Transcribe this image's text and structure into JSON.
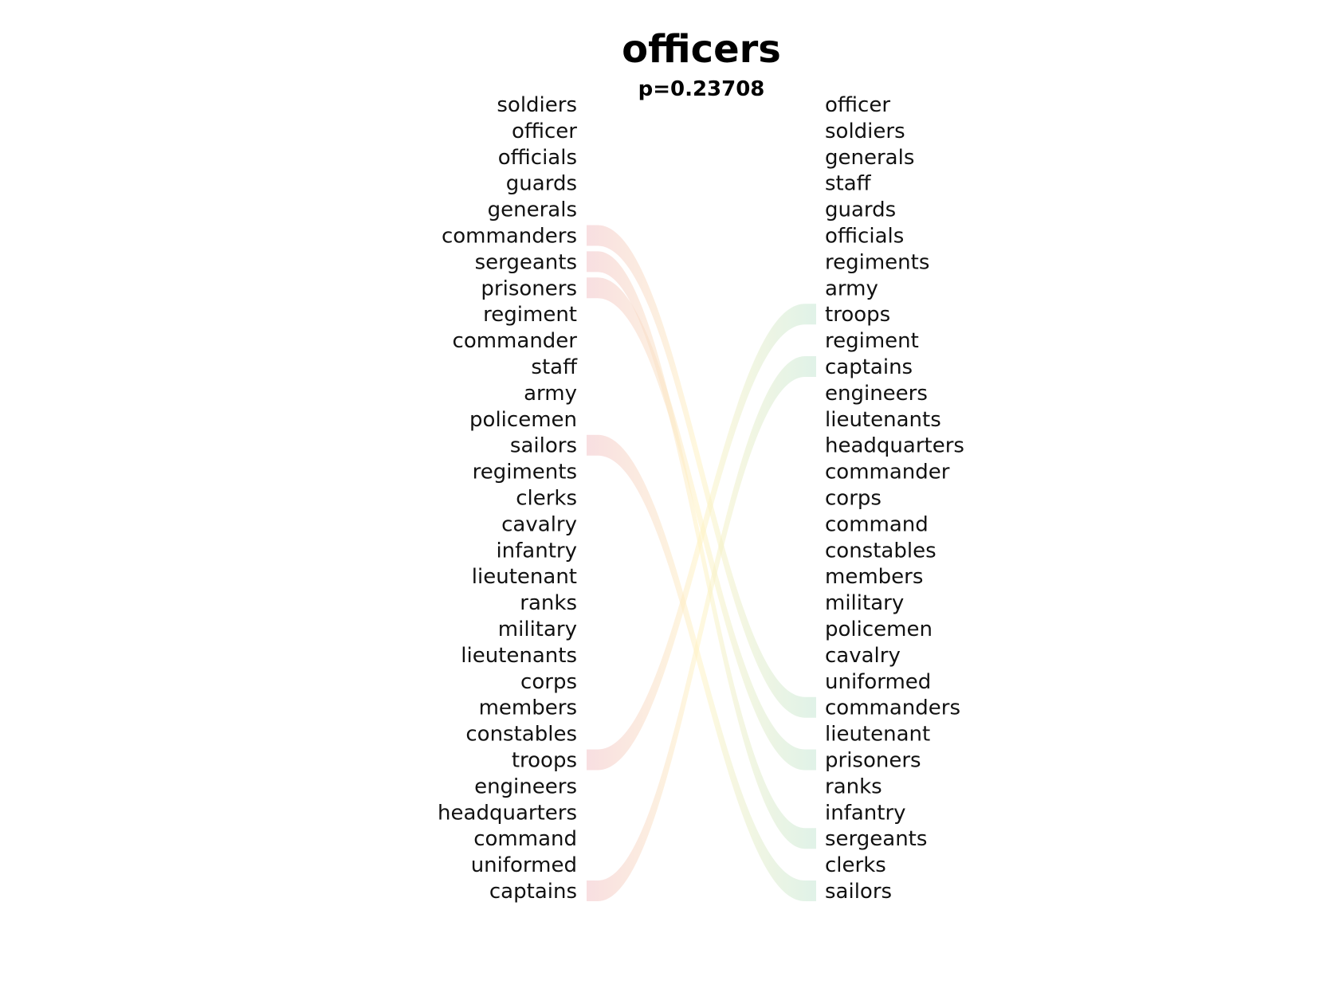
{
  "chart_data": {
    "type": "bump",
    "title": "officers",
    "subtitle": "p=0.23708",
    "left": [
      "soldiers",
      "officer",
      "officials",
      "guards",
      "generals",
      "commanders",
      "sergeants",
      "prisoners",
      "regiment",
      "commander",
      "staff",
      "army",
      "policemen",
      "sailors",
      "regiments",
      "clerks",
      "cavalry",
      "infantry",
      "lieutenant",
      "ranks",
      "military",
      "lieutenants",
      "corps",
      "members",
      "constables",
      "troops",
      "engineers",
      "headquarters",
      "command",
      "uniformed",
      "captains"
    ],
    "right": [
      "officer",
      "soldiers",
      "generals",
      "staff",
      "guards",
      "officials",
      "regiments",
      "army",
      "troops",
      "regiment",
      "captains",
      "engineers",
      "lieutenants",
      "headquarters",
      "commander",
      "corps",
      "command",
      "constables",
      "members",
      "military",
      "policemen",
      "cavalry",
      "uniformed",
      "commanders",
      "lieutenant",
      "prisoners",
      "ranks",
      "infantry",
      "sergeants",
      "clerks",
      "sailors"
    ],
    "highlighted": [
      "commanders",
      "sergeants",
      "prisoners",
      "sailors",
      "troops",
      "captains"
    ],
    "colors": {
      "left_end": "#f2c4c8",
      "middle": "#fff3c4",
      "right_end": "#c8e8d4"
    }
  }
}
